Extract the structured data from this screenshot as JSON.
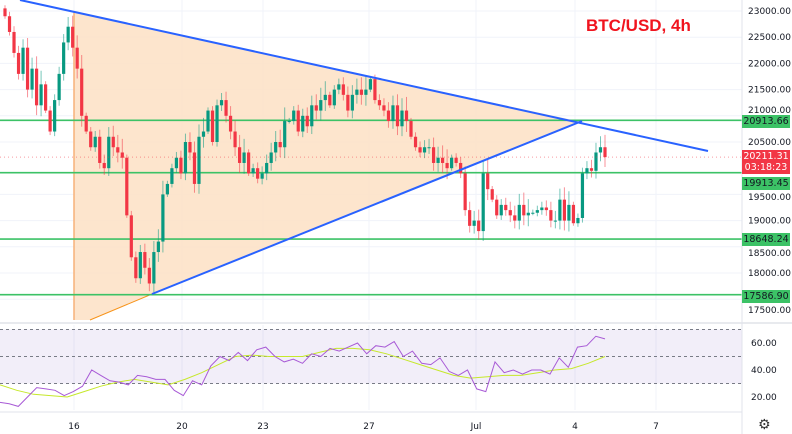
{
  "header": {
    "title": "BTC/USD, 4h"
  },
  "price_axis": {
    "ticks": [
      {
        "value": 23000,
        "label": "23000.00"
      },
      {
        "value": 22500,
        "label": "22500.00"
      },
      {
        "value": 22000,
        "label": "22000.00"
      },
      {
        "value": 21500,
        "label": "21500.00"
      },
      {
        "value": 21000,
        "label": "21000.00"
      },
      {
        "value": 20500,
        "label": "20500.00"
      },
      {
        "value": 19500,
        "label": "19500.00"
      },
      {
        "value": 19000,
        "label": "19000.00"
      },
      {
        "value": 18500,
        "label": "18500.00"
      },
      {
        "value": 18000,
        "label": "18000.00"
      },
      {
        "value": 17500,
        "label": "17500.00"
      }
    ]
  },
  "levels": [
    {
      "value": 20913.66,
      "label": "20913.66"
    },
    {
      "value": 19913.45,
      "label": "19913.45"
    },
    {
      "value": 18648.24,
      "label": "18648.24"
    },
    {
      "value": 17586.9,
      "label": "17586.90"
    }
  ],
  "current_price": {
    "value": 20211.31,
    "label": "20211.31",
    "countdown": "03:18:23"
  },
  "rsi_axis": {
    "ticks": [
      {
        "value": 60,
        "label": "60.00"
      },
      {
        "value": 40,
        "label": "40.00"
      },
      {
        "value": 20,
        "label": "20.00"
      }
    ],
    "upper_band": 70,
    "lower_band": 30,
    "middle": 50
  },
  "time_axis": {
    "labels": [
      "16",
      "20",
      "23",
      "27",
      "Jul",
      "4",
      "7"
    ]
  },
  "colors": {
    "up": "#089981",
    "down": "#f23645",
    "level": "#3cc266",
    "trendline": "#2962ff",
    "triangle_fill": "#fde0c4",
    "rsi": "#a85ad6",
    "rsi_ma": "#c6e82b",
    "title": "#f0141e"
  },
  "chart_data": {
    "type": "candlestick",
    "symbol": "BTC/USD",
    "interval": "4h",
    "ylim": [
      17300,
      23200
    ],
    "closes": [
      22900,
      22600,
      22200,
      21800,
      22300,
      21500,
      21900,
      21200,
      21600,
      21100,
      20700,
      21300,
      21800,
      22400,
      22700,
      22300,
      21900,
      21000,
      20700,
      20400,
      20600,
      20100,
      20000,
      20600,
      20400,
      20300,
      20200,
      19100,
      18300,
      17900,
      18400,
      18100,
      17800,
      18400,
      18600,
      19500,
      19700,
      20000,
      20200,
      19900,
      20500,
      20300,
      19700,
      20600,
      20700,
      21100,
      20500,
      21200,
      21300,
      21000,
      20700,
      20400,
      20100,
      20300,
      19900,
      20000,
      19800,
      19900,
      20100,
      20300,
      20500,
      20400,
      20900,
      20900,
      21100,
      20700,
      21000,
      20800,
      21200,
      21100,
      21300,
      21400,
      21200,
      21500,
      21600,
      21400,
      21100,
      21400,
      21500,
      21400,
      21500,
      21700,
      21300,
      21200,
      21100,
      20900,
      21200,
      20800,
      21100,
      20900,
      20600,
      20400,
      20300,
      20400,
      20400,
      20100,
      20200,
      20100,
      20000,
      20200,
      20100,
      19900,
      19200,
      18900,
      19000,
      18800,
      19900,
      19600,
      19400,
      19100,
      19300,
      19200,
      19100,
      19000,
      19300,
      19100,
      19150,
      19150,
      19200,
      19250,
      19200,
      19000,
      19000,
      19400,
      19000,
      19300,
      18950,
      19050,
      19900,
      20000,
      19950,
      20300,
      20400,
      20211.31
    ],
    "rsi": [
      16,
      15,
      13,
      20,
      27,
      26,
      25,
      21,
      24,
      28,
      40,
      36,
      32,
      31,
      29,
      36,
      35,
      33,
      33,
      25,
      21,
      32,
      29,
      43,
      50,
      47,
      53,
      47,
      55,
      57,
      50,
      46,
      48,
      45,
      52,
      50,
      56,
      54,
      57,
      60,
      52,
      58,
      57,
      61,
      50,
      54,
      45,
      44,
      49,
      39,
      36,
      40,
      26,
      24,
      46,
      38,
      40,
      37,
      40,
      40,
      37,
      49,
      42,
      57,
      58,
      65,
      63
    ],
    "rsi_ma": [
      29,
      25,
      22,
      21,
      20,
      24,
      28,
      31,
      33,
      31,
      29,
      33,
      38,
      44,
      50,
      51,
      50,
      50,
      50,
      53,
      56,
      56,
      55,
      52,
      48,
      44,
      40,
      36,
      34,
      35,
      36,
      36,
      38,
      40,
      41,
      45,
      50
    ]
  }
}
